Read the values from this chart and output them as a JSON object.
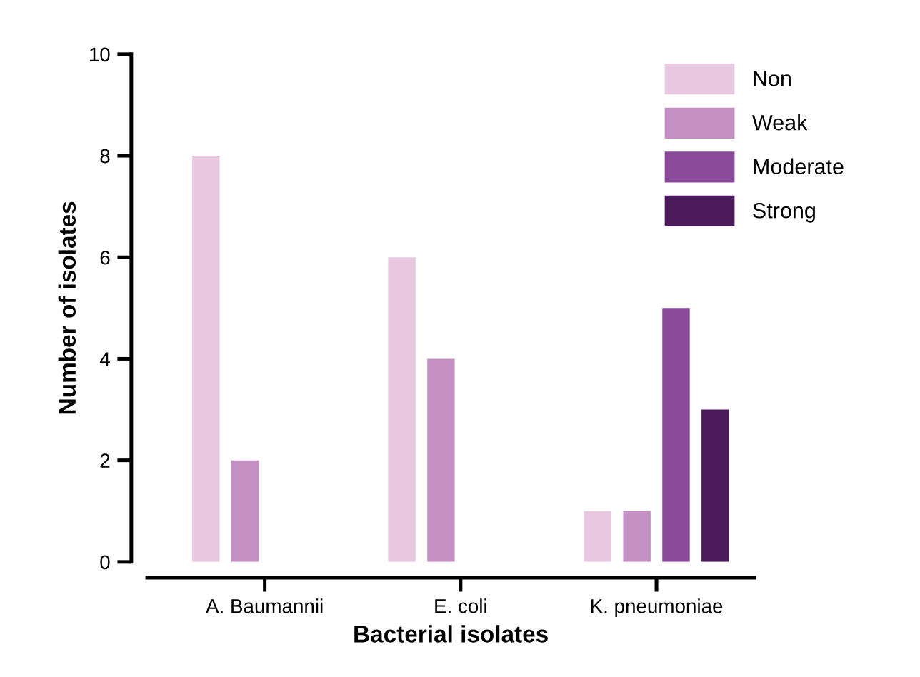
{
  "chart_data": {
    "type": "bar",
    "xlabel": "Bacterial isolates",
    "ylabel": "Number of isolates",
    "categories": [
      "A. Baumannii",
      "E. coli",
      "K. pneumoniae"
    ],
    "series": [
      {
        "name": "Non",
        "color": "#e8c8e0",
        "values": [
          8,
          6,
          1
        ]
      },
      {
        "name": "Weak",
        "color": "#c490c4",
        "values": [
          2,
          4,
          1
        ]
      },
      {
        "name": "Moderate",
        "color": "#8c4a9c",
        "values": [
          0,
          0,
          5
        ]
      },
      {
        "name": "Strong",
        "color": "#4a1a5a",
        "values": [
          0,
          0,
          3
        ]
      }
    ],
    "ylim": [
      0,
      10
    ],
    "yticks": [
      0,
      2,
      4,
      6,
      8,
      10
    ],
    "grid": false,
    "legend": "top right"
  }
}
